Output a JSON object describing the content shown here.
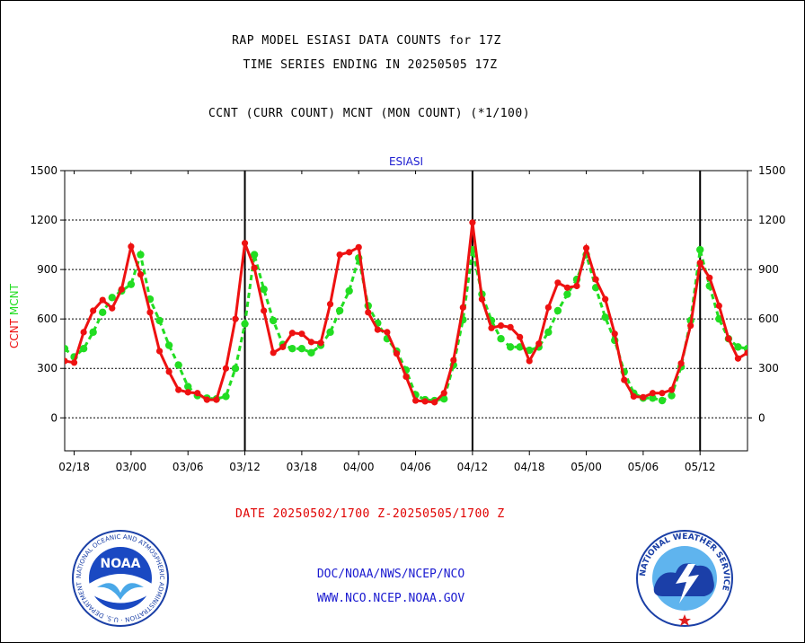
{
  "header": {
    "title_line1": "RAP MODEL ESIASI DATA COUNTS for 17Z",
    "title_line2": "TIME SERIES ENDING IN 20250505 17Z",
    "subtitle": "CCNT (CURR COUNT) MCNT (MON COUNT) (*1/100)"
  },
  "footer": {
    "date_range": "DATE 20250502/1700 Z-20250505/1700 Z",
    "link1": "DOC/NOAA/NWS/NCEP/NCO",
    "link2": "WWW.NCO.NCEP.NOAA.GOV"
  },
  "logos": {
    "left_text": "NOAA",
    "left_ring_text": "NATIONAL OCEANIC AND ATMOSPHERIC ADMINISTRATION · U.S. DEPARTMENT OF COMMERCE ·",
    "right_ring_text": "NATIONAL WEATHER SERVICE"
  },
  "chart_data": {
    "type": "line",
    "title": "ESIASI",
    "ylabel_left": [
      "CCNT",
      "MCNT"
    ],
    "ylim": [
      -200,
      1500
    ],
    "yticks": [
      0,
      300,
      600,
      900,
      1200,
      1500
    ],
    "x_tick_labels": [
      "02/18",
      "03/00",
      "03/06",
      "03/12",
      "03/18",
      "04/00",
      "04/06",
      "04/12",
      "04/18",
      "05/00",
      "05/06",
      "05/12"
    ],
    "x_tick_hours": [
      -54,
      -48,
      -42,
      -36,
      -30,
      -24,
      -18,
      -12,
      -6,
      0,
      6,
      12
    ],
    "x_range_hours": [
      -55,
      17
    ],
    "day_boundaries_hours": [
      -36,
      -12,
      12
    ],
    "colors": {
      "ccnt": "#ee1111",
      "mcnt": "#22dd22",
      "title": "#1a1ad0",
      "grid": "#000000"
    },
    "series": [
      {
        "name": "CCNT",
        "x": [
          -55,
          -54,
          -53,
          -52,
          -51,
          -50,
          -49,
          -48,
          -47,
          -46,
          -45,
          -44,
          -43,
          -42,
          -41,
          -40,
          -39,
          -38,
          -37,
          -36,
          -35,
          -34,
          -33,
          -32,
          -31,
          -30,
          -29,
          -28,
          -27,
          -26,
          -25,
          -24,
          -23,
          -22,
          -21,
          -20,
          -19,
          -18,
          -17,
          -16,
          -15,
          -14,
          -13,
          -12,
          -11,
          -10,
          -9,
          -8,
          -7,
          -6,
          -5,
          -4,
          -3,
          -2,
          -1,
          0,
          1,
          2,
          3,
          4,
          5,
          6,
          7,
          8,
          9,
          10,
          11,
          12,
          13,
          14,
          15,
          16,
          17
        ],
        "values": [
          345,
          335,
          520,
          650,
          715,
          665,
          780,
          1040,
          870,
          640,
          405,
          280,
          170,
          155,
          150,
          110,
          110,
          300,
          600,
          1060,
          910,
          650,
          395,
          430,
          515,
          510,
          460,
          455,
          690,
          990,
          1005,
          1035,
          640,
          535,
          520,
          390,
          250,
          105,
          100,
          95,
          150,
          350,
          670,
          1185,
          720,
          545,
          560,
          550,
          490,
          345,
          450,
          670,
          820,
          790,
          800,
          1030,
          840,
          720,
          510,
          230,
          130,
          125,
          150,
          150,
          170,
          330,
          560,
          940,
          850,
          680,
          480,
          360,
          395
        ]
      },
      {
        "name": "MCNT",
        "x": [
          -55,
          -54,
          -53,
          -52,
          -51,
          -50,
          -49,
          -48,
          -47,
          -46,
          -45,
          -44,
          -43,
          -42,
          -41,
          -40,
          -39,
          -38,
          -37,
          -36,
          -35,
          -34,
          -33,
          -32,
          -31,
          -30,
          -29,
          -28,
          -27,
          -26,
          -25,
          -24,
          -23,
          -22,
          -21,
          -20,
          -19,
          -18,
          -17,
          -16,
          -15,
          -14,
          -13,
          -12,
          -11,
          -10,
          -9,
          -8,
          -7,
          -6,
          -5,
          -4,
          -3,
          -2,
          -1,
          0,
          1,
          2,
          3,
          4,
          5,
          6,
          7,
          8,
          9,
          10,
          11,
          12,
          13,
          14,
          15,
          16,
          17
        ],
        "values": [
          420,
          370,
          420,
          520,
          640,
          730,
          770,
          810,
          990,
          720,
          590,
          440,
          320,
          190,
          135,
          120,
          115,
          130,
          300,
          570,
          990,
          780,
          590,
          445,
          420,
          420,
          395,
          440,
          520,
          650,
          770,
          970,
          680,
          575,
          480,
          405,
          290,
          140,
          110,
          105,
          115,
          320,
          595,
          1020,
          750,
          590,
          480,
          430,
          430,
          410,
          430,
          520,
          650,
          750,
          840,
          990,
          790,
          610,
          470,
          280,
          150,
          120,
          120,
          105,
          135,
          310,
          590,
          1020,
          800,
          600,
          480,
          430,
          420
        ]
      }
    ]
  }
}
